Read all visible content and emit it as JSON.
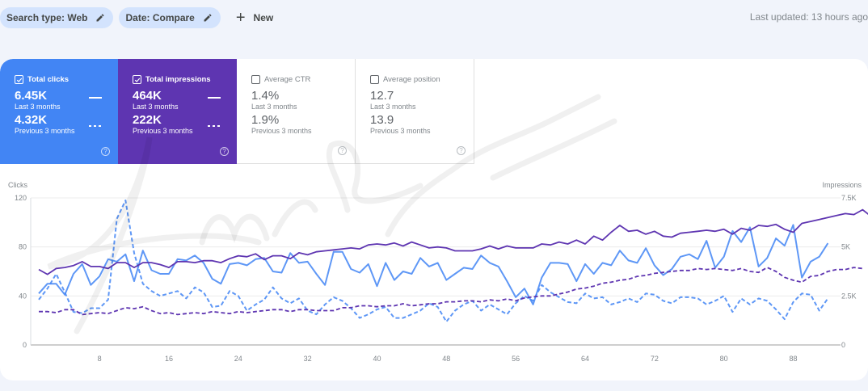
{
  "topbar": {
    "filters": [
      {
        "label": "Search type: Web",
        "icon": "pencil-icon"
      },
      {
        "label": "Date: Compare",
        "icon": "pencil-icon"
      }
    ],
    "new_label": "New",
    "new_icon": "plus-icon",
    "last_updated": "Last updated: 13 hours ago"
  },
  "cards": [
    {
      "id": "clicks",
      "label": "Total clicks",
      "checked": true,
      "current": "6.45K",
      "current_label": "Last 3 months",
      "previous": "4.32K",
      "previous_label": "Previous 3 months",
      "color": "#4285f4"
    },
    {
      "id": "impressions",
      "label": "Total impressions",
      "checked": true,
      "current": "464K",
      "current_label": "Last 3 months",
      "previous": "222K",
      "previous_label": "Previous 3 months",
      "color": "#5e35b1"
    },
    {
      "id": "ctr",
      "label": "Average CTR",
      "checked": false,
      "current": "1.4%",
      "current_label": "Last 3 months",
      "previous": "1.9%",
      "previous_label": "Previous 3 months"
    },
    {
      "id": "position",
      "label": "Average position",
      "checked": false,
      "current": "12.7",
      "current_label": "Last 3 months",
      "previous": "13.9",
      "previous_label": "Previous 3 months"
    }
  ],
  "watermark": "Amr Elshenawy",
  "chart_data": {
    "type": "line",
    "title": "",
    "left_axis": {
      "label": "Clicks",
      "ticks": [
        "0",
        "40",
        "80",
        "120"
      ],
      "range": [
        0,
        120
      ]
    },
    "right_axis": {
      "label": "Impressions",
      "ticks": [
        "0",
        "2.5K",
        "5K",
        "7.5K"
      ],
      "range": [
        0,
        7500
      ]
    },
    "x_ticks": [
      "8",
      "16",
      "24",
      "32",
      "40",
      "48",
      "56",
      "64",
      "72",
      "80",
      "88"
    ],
    "x_range": [
      1,
      92
    ],
    "grid": true,
    "legend": "cards (solid = Last 3 months, dashed = Previous 3 months)",
    "colors": {
      "clicks": "#4285f4",
      "impressions": "#5e35b1"
    },
    "series": [
      {
        "name": "Clicks - Last 3 months",
        "axis": "left",
        "style": "solid",
        "color": "#4285f4",
        "values": [
          42,
          50,
          50,
          41,
          58,
          66,
          49,
          56,
          70,
          68,
          74,
          52,
          77,
          61,
          58,
          58,
          70,
          69,
          73,
          67,
          54,
          50,
          66,
          67,
          65,
          70,
          71,
          60,
          59,
          75,
          67,
          68,
          58,
          49,
          76,
          76,
          62,
          59,
          66,
          48,
          67,
          53,
          60,
          58,
          71,
          64,
          67,
          53,
          58,
          63,
          62,
          73,
          67,
          64,
          52,
          39,
          46,
          33,
          55,
          67,
          67,
          66,
          52,
          66,
          58,
          67,
          65,
          77,
          69,
          67,
          79,
          65,
          57,
          62,
          72,
          74,
          70,
          85,
          63,
          72,
          93,
          84,
          96,
          64,
          71,
          87,
          81,
          98,
          55,
          68,
          72,
          83
        ]
      },
      {
        "name": "Clicks - Previous 3 months",
        "axis": "left",
        "style": "dashed",
        "color": "#4285f4",
        "values": [
          37,
          46,
          58,
          43,
          27,
          26,
          30,
          30,
          37,
          103,
          118,
          75,
          50,
          44,
          40,
          42,
          44,
          38,
          47,
          43,
          31,
          32,
          44,
          40,
          28,
          33,
          37,
          47,
          38,
          34,
          38,
          28,
          25,
          33,
          39,
          36,
          30,
          22,
          25,
          29,
          31,
          22,
          22,
          25,
          28,
          34,
          31,
          19,
          28,
          33,
          36,
          28,
          33,
          29,
          25,
          34,
          40,
          36,
          49,
          43,
          39,
          35,
          34,
          42,
          38,
          39,
          33,
          35,
          38,
          35,
          42,
          41,
          36,
          34,
          39,
          39,
          38,
          33,
          36,
          40,
          27,
          38,
          33,
          38,
          36,
          29,
          21,
          35,
          42,
          41,
          28,
          38
        ]
      },
      {
        "name": "Impressions - Last 3 months",
        "axis": "right",
        "style": "solid",
        "color": "#5e35b1",
        "values": [
          3850,
          3600,
          3900,
          3950,
          4050,
          4250,
          4000,
          4000,
          3900,
          4200,
          4200,
          3950,
          4200,
          4200,
          4100,
          3950,
          4250,
          4250,
          4200,
          4300,
          4300,
          4200,
          4400,
          4550,
          4500,
          4650,
          4350,
          4550,
          4550,
          4400,
          4700,
          4600,
          4750,
          4800,
          4850,
          4900,
          4950,
          4900,
          5100,
          5150,
          5100,
          5200,
          5050,
          5250,
          5100,
          4950,
          5000,
          4950,
          4800,
          4800,
          4800,
          4900,
          5050,
          4900,
          5050,
          4950,
          4950,
          4950,
          5150,
          5100,
          5250,
          5150,
          5350,
          5150,
          5550,
          5350,
          5750,
          6100,
          5800,
          5850,
          5650,
          5800,
          5550,
          5500,
          5700,
          5750,
          5800,
          5850,
          5800,
          5900,
          5650,
          5950,
          5850,
          6100,
          6050,
          6150,
          5900,
          5750,
          6200,
          6300,
          6400,
          6500,
          6600,
          6700,
          6650,
          6900,
          6550
        ]
      },
      {
        "name": "Impressions - Previous 3 months",
        "axis": "right",
        "style": "dashed",
        "color": "#5e35b1",
        "values": [
          1700,
          1700,
          1650,
          1800,
          1800,
          1550,
          1600,
          1650,
          1600,
          1750,
          1900,
          1850,
          1950,
          1750,
          1600,
          1650,
          1550,
          1600,
          1650,
          1600,
          1700,
          1650,
          1600,
          1700,
          1650,
          1700,
          1750,
          1800,
          1800,
          1700,
          1800,
          1800,
          1750,
          1750,
          1750,
          1900,
          1900,
          2000,
          2000,
          1950,
          2000,
          2000,
          2100,
          2000,
          2050,
          2100,
          2100,
          2200,
          2200,
          2250,
          2250,
          2200,
          2300,
          2250,
          2350,
          2250,
          2400,
          2450,
          2500,
          2500,
          2600,
          2700,
          2850,
          2900,
          3000,
          3150,
          3200,
          3300,
          3350,
          3500,
          3550,
          3650,
          3700,
          3750,
          3800,
          3800,
          3900,
          3850,
          3900,
          3850,
          3800,
          3900,
          3750,
          3700,
          3950,
          3750,
          3450,
          3300,
          3200,
          3500,
          3550,
          3750,
          3850,
          3850,
          3950,
          3900
        ]
      }
    ]
  }
}
